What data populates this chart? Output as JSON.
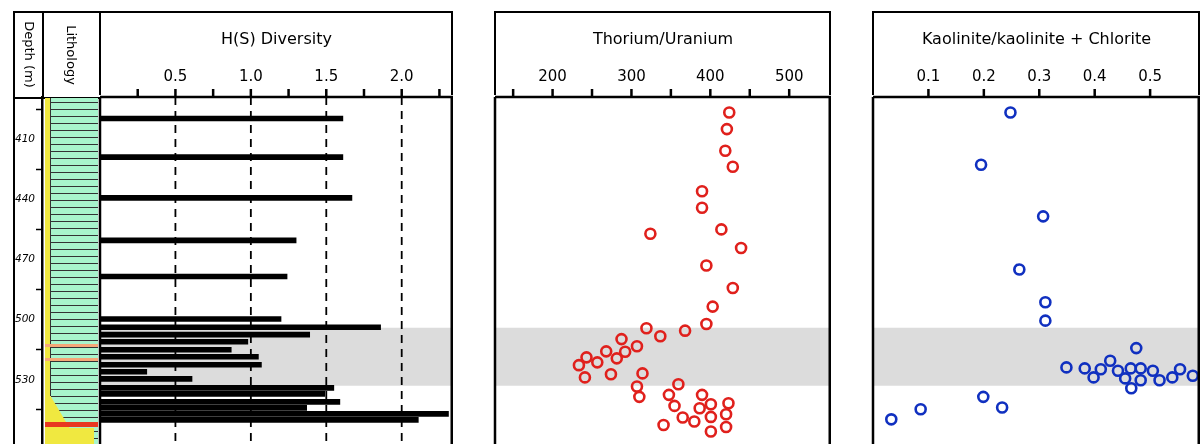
{
  "chart_data": [
    {
      "type": "bar",
      "orientation": "horizontal",
      "xlabel": "H(S) Diversity",
      "ylabel": "Depth (m)",
      "annotations": [
        "Lithology"
      ],
      "x": [
        399.7,
        419,
        439.3,
        460.5,
        478.5,
        499.7,
        503.8,
        507.5,
        511,
        515,
        518.5,
        522.5,
        526,
        529.5,
        534,
        537,
        541,
        544,
        547,
        550
      ],
      "values": [
        1.61,
        1.61,
        1.67,
        1.3,
        1.24,
        1.2,
        1.86,
        1.39,
        0.98,
        0.87,
        1.05,
        1.07,
        0.31,
        0.61,
        1.55,
        1.49,
        1.59,
        1.37,
        2.31,
        2.11
      ],
      "color": "#000000",
      "xlim": [
        0,
        2.34
      ],
      "xticks": [
        {
          "value": 0.25,
          "label": null
        },
        0.5,
        {
          "value": 0.75,
          "label": null
        },
        {
          "value": 1,
          "label": "1.0"
        },
        {
          "value": 1.25,
          "label": null
        },
        1.5,
        {
          "value": 1.75,
          "label": null
        },
        {
          "value": 2,
          "label": "2.0"
        },
        {
          "value": 2.25,
          "label": null
        }
      ],
      "ylim": [
        562,
        389
      ],
      "yticks": [
        410,
        440,
        470,
        500,
        530
      ],
      "grid": "x",
      "bands": [
        {
          "axis": "y",
          "from": 504,
          "to": 533,
          "color": "#dcdcdc"
        }
      ]
    },
    {
      "type": "scatter",
      "xlabel": "Thorium/Uranium",
      "marker": "circle",
      "tick_labels": "x",
      "series": [
        {
          "color": "#e0201c",
          "x": [
            424,
            421,
            419,
            428.5,
            389.5,
            389.5,
            414,
            324,
            439,
            395,
            428.5,
            403,
            395,
            319,
            368,
            336.6,
            287.4,
            307,
            268,
            292,
            281.4,
            243,
            256.7,
            233.4,
            274,
            241,
            314,
            307,
            359.5,
            310,
            347.5,
            389.5,
            354.6,
            400.7,
            423,
            386.5,
            400.7,
            420,
            365,
            379.7,
            340.7,
            420,
            400.7
          ],
          "values": [
            396.7,
            405,
            415.8,
            423.8,
            436,
            444.2,
            455,
            457.2,
            464.3,
            473,
            484.2,
            493.5,
            502.2,
            504.3,
            505.5,
            508.3,
            509.7,
            513.3,
            515.8,
            516,
            519.3,
            518.8,
            521.3,
            522.7,
            527.2,
            528.8,
            526.8,
            533.3,
            532.2,
            538.5,
            537.5,
            537.5,
            543,
            542.2,
            541.7,
            544.2,
            548.5,
            547.2,
            548.8,
            550.8,
            552.5,
            553.5,
            555.8
          ]
        }
      ],
      "xlim": [
        127,
        553
      ],
      "xticks": [
        {
          "value": 150,
          "label": null
        },
        200,
        {
          "value": 250,
          "label": null
        },
        300,
        {
          "value": 350,
          "label": null
        },
        400,
        {
          "value": 450,
          "label": null
        },
        500
      ],
      "ylim": [
        562,
        389
      ],
      "bands": [
        {
          "axis": "y",
          "from": 504,
          "to": 533,
          "color": "#dcdcdc"
        }
      ]
    },
    {
      "type": "scatter",
      "xlabel": "Kaolinite/kaolinite + Chlorite",
      "marker": "circle",
      "tick_labels": "x",
      "series": [
        {
          "color": "#1030c0",
          "x": [
            0.248,
            0.195,
            0.307,
            0.264,
            0.311,
            0.311,
            0.475,
            0.349,
            0.382,
            0.398,
            0.411,
            0.428,
            0.442,
            0.455,
            0.465,
            0.466,
            0.483,
            0.483,
            0.505,
            0.517,
            0.54,
            0.554,
            0.577,
            0.199,
            0.233,
            0.086,
            0.033
          ],
          "values": [
            396.7,
            422.8,
            448.5,
            475,
            491.3,
            500.5,
            514.2,
            523.8,
            524.3,
            528.8,
            524.7,
            520.5,
            525.5,
            529.3,
            524.3,
            534.2,
            524.3,
            530.2,
            525.5,
            530.2,
            528.8,
            524.7,
            528,
            538.5,
            543.8,
            544.7,
            549.7
          ]
        }
      ],
      "xlim": [
        0,
        0.59
      ],
      "xticks": [
        0.1,
        0.2,
        0.3,
        0.4,
        0.5
      ],
      "ylim": [
        562,
        389
      ],
      "bands": [
        {
          "axis": "y",
          "from": 504,
          "to": 533,
          "color": "#dcdcdc"
        }
      ]
    }
  ]
}
